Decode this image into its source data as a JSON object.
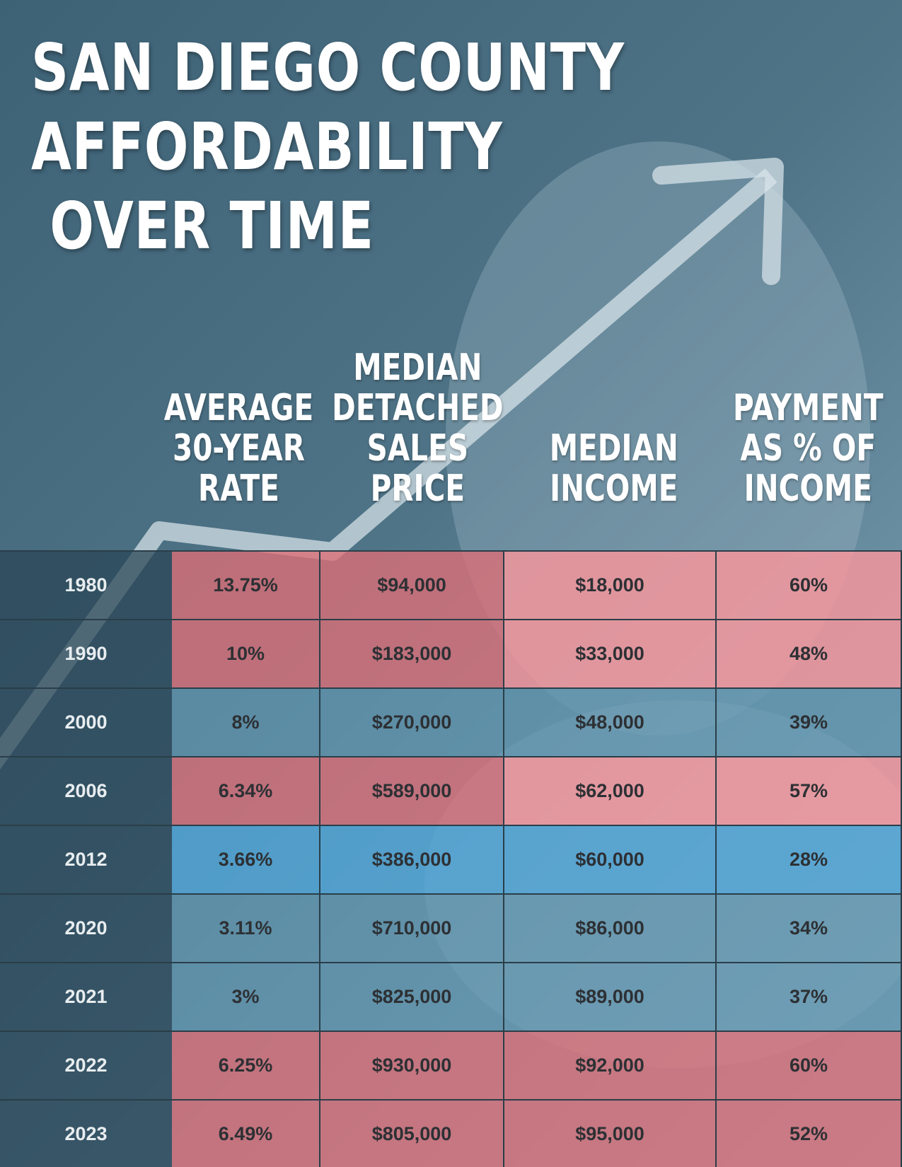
{
  "title": "SAN DIEGO COUNTY\nAFFORDABILITY\n OVER TIME",
  "colors": {
    "high_burden": "#c76b73",
    "low_burden": "#5f96af",
    "highlight_low": "#50a5d7"
  },
  "columns": [
    {
      "label": "AVERAGE\n30-YEAR\nRATE"
    },
    {
      "label": "MEDIAN\nDETACHED\nSALES\nPRICE"
    },
    {
      "label": "MEDIAN\nINCOME"
    },
    {
      "label": "PAYMENT\nAS % OF\nINCOME"
    }
  ],
  "chart_data": {
    "type": "table",
    "title": "SAN DIEGO COUNTY AFFORDABILITY OVER TIME",
    "columns": [
      "",
      "AVERAGE 30-YEAR RATE",
      "MEDIAN DETACHED SALES PRICE",
      "MEDIAN INCOME",
      "PAYMENT AS % OF INCOME"
    ],
    "rows": [
      {
        "year": "1980",
        "rate": "13.75%",
        "price": "$94,000",
        "income": "$18,000",
        "pct": "60%",
        "tone": "red"
      },
      {
        "year": "1990",
        "rate": "10%",
        "price": "$183,000",
        "income": "$33,000",
        "pct": "48%",
        "tone": "red"
      },
      {
        "year": "2000",
        "rate": "8%",
        "price": "$270,000",
        "income": "$48,000",
        "pct": "39%",
        "tone": "blue"
      },
      {
        "year": "2006",
        "rate": "6.34%",
        "price": "$589,000",
        "income": "$62,000",
        "pct": "57%",
        "tone": "red"
      },
      {
        "year": "2012",
        "rate": "3.66%",
        "price": "$386,000",
        "income": "$60,000",
        "pct": "28%",
        "tone": "blue-bright"
      },
      {
        "year": "2020",
        "rate": "3.11%",
        "price": "$710,000",
        "income": "$86,000",
        "pct": "34%",
        "tone": "blue"
      },
      {
        "year": "2021",
        "rate": "3%",
        "price": "$825,000",
        "income": "$89,000",
        "pct": "37%",
        "tone": "blue"
      },
      {
        "year": "2022",
        "rate": "6.25%",
        "price": "$930,000",
        "income": "$92,000",
        "pct": "60%",
        "tone": "red"
      },
      {
        "year": "2023",
        "rate": "6.49%",
        "price": "$805,000",
        "income": "$95,000",
        "pct": "52%",
        "tone": "red"
      }
    ]
  }
}
